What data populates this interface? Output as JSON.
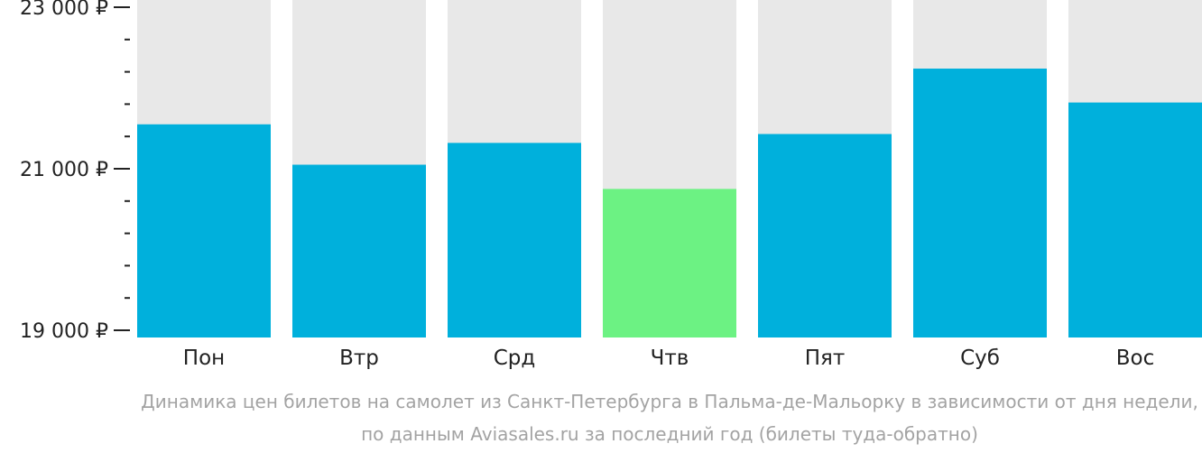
{
  "chart_data": {
    "type": "bar",
    "categories": [
      "Пон",
      "Втр",
      "Срд",
      "Чтв",
      "Пят",
      "Суб",
      "Вос"
    ],
    "values": [
      21550,
      21050,
      21320,
      20750,
      21430,
      22240,
      21820
    ],
    "ylim": [
      19000,
      23000
    ],
    "yticks": [
      {
        "value": 23000,
        "label": "23 000 ₽"
      },
      {
        "value": 21000,
        "label": "21 000 ₽"
      },
      {
        "value": 19000,
        "label": "19 000 ₽"
      }
    ],
    "minor_tick_step": 400,
    "highlight_index": 3,
    "colors": {
      "bar": "#00b0dc",
      "highlight": "#6cf283",
      "track": "#e8e8e8",
      "axis": "#222222",
      "caption": "#a3a3a3"
    },
    "caption": [
      "Динамика цен билетов на самолет из Санкт-Петербурга в Пальма-де-Мальорку в зависимости от дня недели,",
      "по данным Aviasales.ru за последний год (билеты туда-обратно)"
    ]
  }
}
